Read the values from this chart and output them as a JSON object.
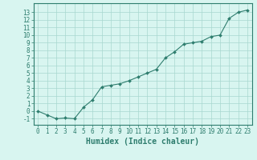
{
  "xlabel": "Humidex (Indice chaleur)",
  "ylabel": "",
  "x_values": [
    0,
    1,
    2,
    3,
    4,
    5,
    6,
    7,
    8,
    9,
    10,
    11,
    12,
    13,
    14,
    15,
    16,
    17,
    18,
    19,
    20,
    21,
    22,
    23
  ],
  "y_values": [
    0.0,
    -0.5,
    -1.0,
    -0.9,
    -1.0,
    0.5,
    1.5,
    3.2,
    3.4,
    3.6,
    4.0,
    4.5,
    5.0,
    5.5,
    7.0,
    7.8,
    8.8,
    9.0,
    9.2,
    9.8,
    10.0,
    12.2,
    13.0,
    13.3
  ],
  "line_color": "#2e7d6e",
  "marker": "D",
  "marker_size": 2,
  "bg_color": "#d8f5f0",
  "grid_color": "#a8d8d0",
  "axis_color": "#2e7d6e",
  "tick_color": "#2e7d6e",
  "xlim": [
    -0.5,
    23.5
  ],
  "ylim": [
    -1.8,
    14.2
  ],
  "yticks": [
    -1,
    0,
    1,
    2,
    3,
    4,
    5,
    6,
    7,
    8,
    9,
    10,
    11,
    12,
    13
  ],
  "xticks": [
    0,
    1,
    2,
    3,
    4,
    5,
    6,
    7,
    8,
    9,
    10,
    11,
    12,
    13,
    14,
    15,
    16,
    17,
    18,
    19,
    20,
    21,
    22,
    23
  ],
  "font_size": 5.5,
  "label_font_size": 7
}
